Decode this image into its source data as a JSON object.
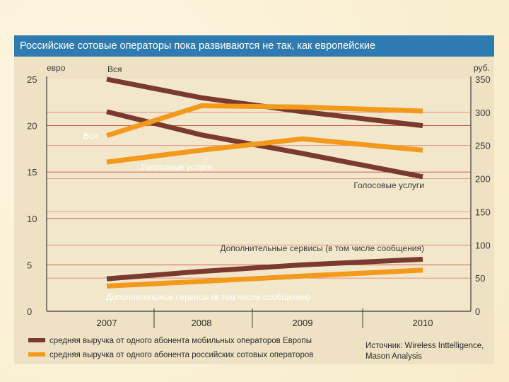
{
  "chart_data": {
    "type": "line",
    "title": "Российские сотовые операторы пока развиваются не так, как европейские",
    "x": [
      "2007",
      "2008",
      "2009",
      "2010"
    ],
    "left_axis": {
      "unit": "евро",
      "ticks": [
        "0",
        "5",
        "10",
        "15",
        "20",
        "25"
      ],
      "ylim": [
        0,
        25
      ]
    },
    "right_axis": {
      "unit": "руб.",
      "ticks": [
        "0",
        "50",
        "100",
        "150",
        "200",
        "250",
        "300",
        "350"
      ],
      "ylim": [
        0,
        350
      ]
    },
    "series": [
      {
        "name": "Вся",
        "group": "eu",
        "axis": "left",
        "values": [
          25,
          23,
          21.5,
          20
        ]
      },
      {
        "name": "Голосовые услуги",
        "group": "eu",
        "axis": "left",
        "values": [
          21.5,
          19,
          17,
          14.5
        ]
      },
      {
        "name": "Дополнительные сервисы (в том числе сообщения)",
        "group": "eu",
        "axis": "left",
        "values": [
          3.5,
          4.3,
          5,
          5.6
        ]
      },
      {
        "name": "Вся",
        "group": "ru",
        "axis": "right",
        "values": [
          265,
          310,
          308,
          302
        ]
      },
      {
        "name": "Голосовые услуги",
        "group": "ru",
        "axis": "right",
        "values": [
          225,
          243,
          260,
          243
        ]
      },
      {
        "name": "Дополнительные сервисы (в том числе сообщения)",
        "group": "ru",
        "axis": "right",
        "values": [
          38,
          45,
          53,
          62
        ]
      }
    ],
    "legend": [
      {
        "label": "средняя выручка от одного абонента мобильных операторов Европы",
        "color": "#7a3b2e"
      },
      {
        "label": "средняя выручка от одного абонента российских сотовых операторов",
        "color": "#f39a1c"
      }
    ],
    "source": [
      "Источник: Wireless Inttelligence,",
      "Mason Analysis"
    ],
    "colors": {
      "eu": "#7a3b2e",
      "ru": "#f39a1c",
      "title_bar": "#2e7bb2",
      "grid": "#c8453e"
    },
    "grid": true
  }
}
